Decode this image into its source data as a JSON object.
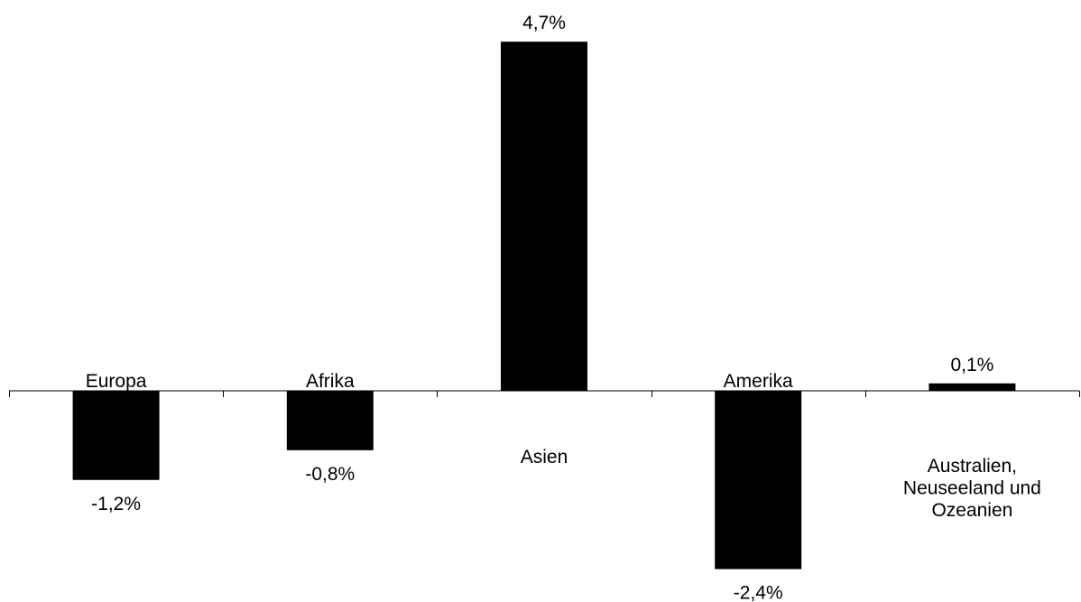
{
  "chart_data": {
    "type": "bar",
    "title": "",
    "xlabel": "",
    "ylabel": "",
    "categories": [
      "Europa",
      "Afrika",
      "Asien",
      "Amerika",
      "Australien, Neuseeland und Ozeanien"
    ],
    "category_label_lines": [
      [
        "Europa"
      ],
      [
        "Afrika"
      ],
      [
        "Asien"
      ],
      [
        "Amerika"
      ],
      [
        "Australien,",
        "Neuseeland und",
        "Ozeanien"
      ]
    ],
    "values": [
      -1.2,
      -0.8,
      4.7,
      -2.4,
      0.1
    ],
    "value_labels": [
      "-1,2%",
      "-0,8%",
      "4,7%",
      "-2,4%",
      "0,1%"
    ],
    "unit": "%",
    "grid": false,
    "legend": "none",
    "bar_color": "#000000",
    "axis_color": "#000000"
  }
}
